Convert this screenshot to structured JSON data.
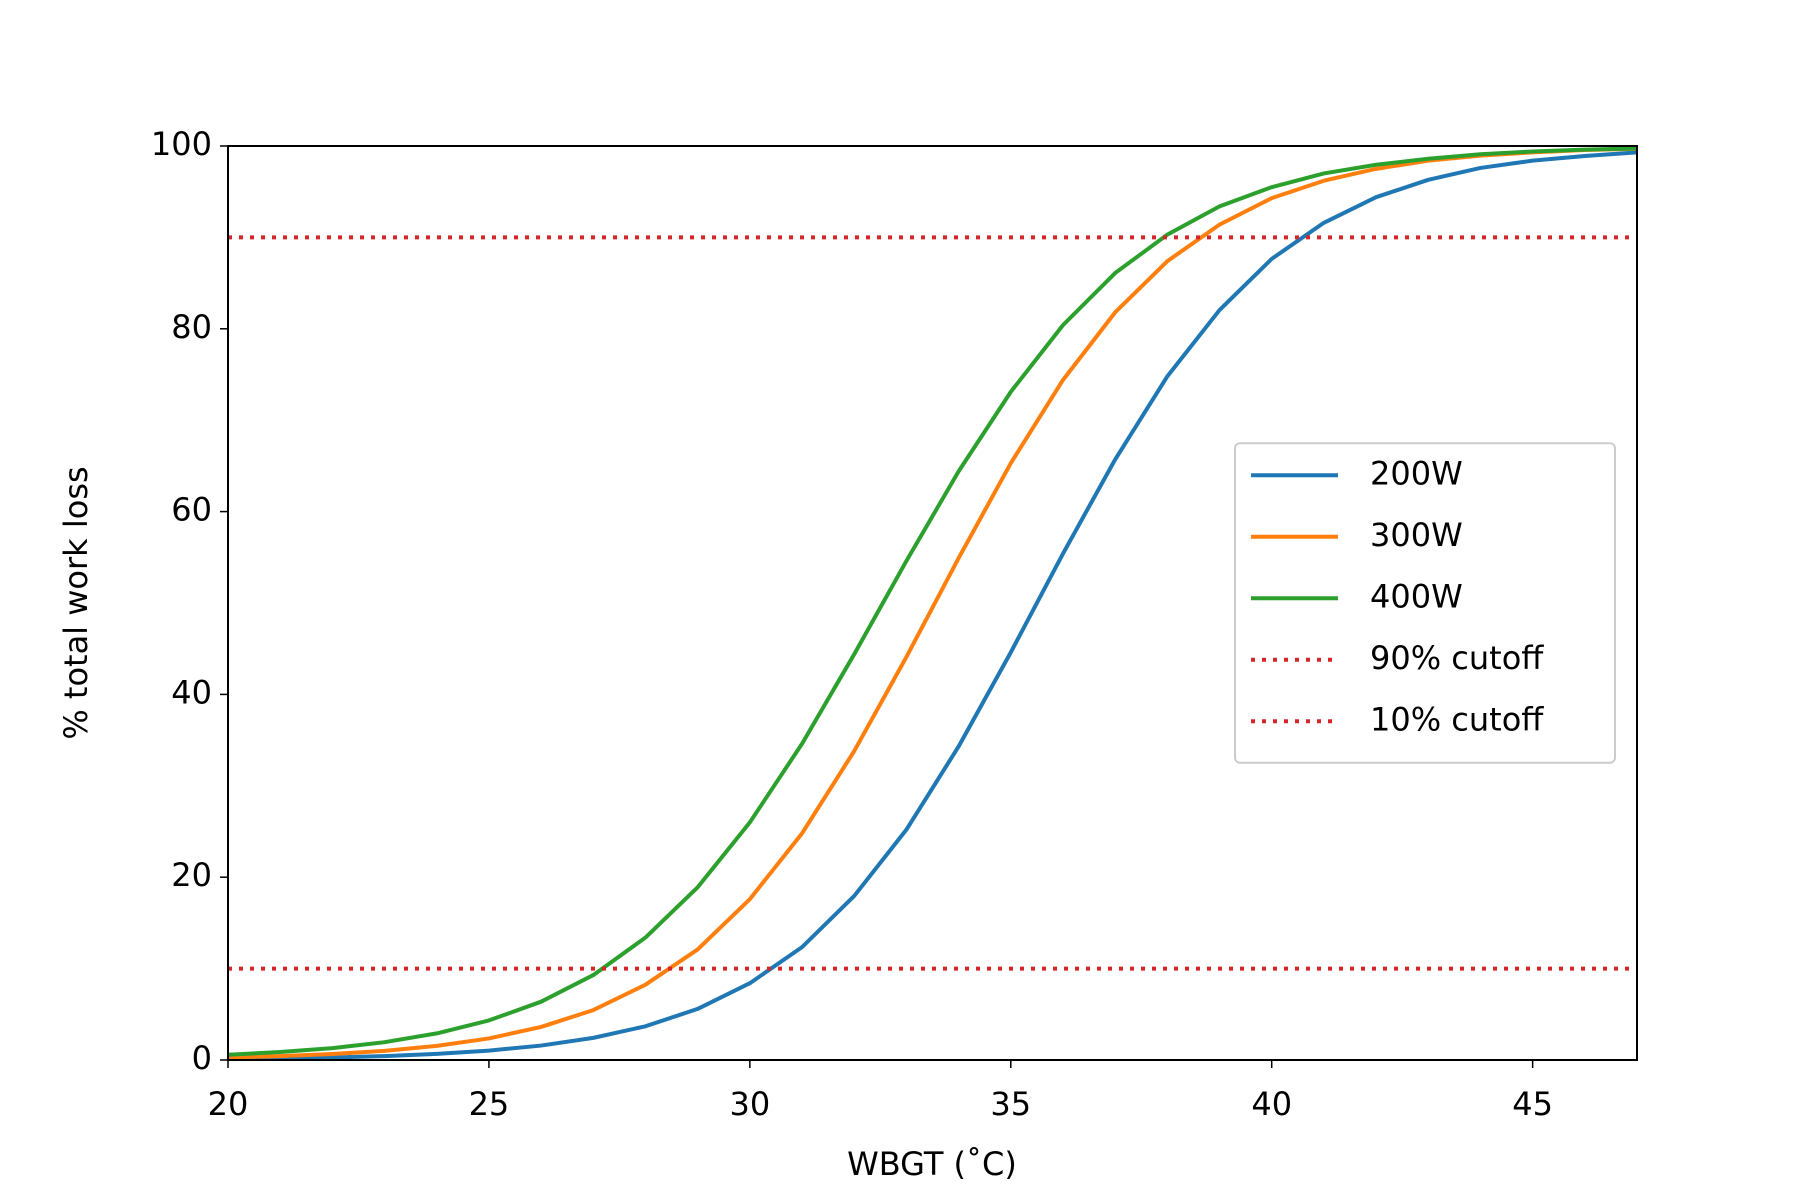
{
  "chart_data": {
    "type": "line",
    "xlabel": "WBGT (˚C)",
    "ylabel": "% total work loss",
    "x": [
      20,
      21,
      22,
      23,
      24,
      25,
      26,
      27,
      28,
      29,
      30,
      31,
      32,
      33,
      34,
      35,
      36,
      37,
      38,
      39,
      40,
      41,
      42,
      43,
      44,
      45,
      46,
      47
    ],
    "series": [
      {
        "name": "200W",
        "color": "#1f77b4",
        "values": [
          0.12,
          0.18,
          0.28,
          0.43,
          0.67,
          1.03,
          1.58,
          2.42,
          3.69,
          5.59,
          8.4,
          12.35,
          17.95,
          25.2,
          34.3,
          44.6,
          55.4,
          65.7,
          74.8,
          82.05,
          87.65,
          91.6,
          94.4,
          96.3,
          97.6,
          98.4,
          98.9,
          99.3
        ]
      },
      {
        "name": "300W",
        "color": "#ff7f0e",
        "values": [
          0.28,
          0.42,
          0.65,
          1.0,
          1.55,
          2.36,
          3.62,
          5.46,
          8.24,
          12.1,
          17.6,
          24.8,
          33.8,
          44.1,
          54.9,
          65.3,
          74.4,
          81.8,
          87.4,
          91.4,
          94.3,
          96.2,
          97.5,
          98.4,
          98.95,
          99.3,
          99.56,
          99.7
        ]
      },
      {
        "name": "400W",
        "color": "#2ca02c",
        "values": [
          0.58,
          0.87,
          1.3,
          1.95,
          2.91,
          4.33,
          6.38,
          9.29,
          13.4,
          18.9,
          26.0,
          34.6,
          44.4,
          54.6,
          64.4,
          73.1,
          80.4,
          86.1,
          90.3,
          93.4,
          95.5,
          97.0,
          97.95,
          98.6,
          99.1,
          99.4,
          99.6,
          99.73
        ]
      }
    ],
    "hlines": [
      {
        "name": "90% cutoff",
        "color": "#d62728",
        "value": 90,
        "linestyle": "dotted"
      },
      {
        "name": "10% cutoff",
        "color": "#d62728",
        "value": 10,
        "linestyle": "dotted"
      }
    ],
    "xlim": [
      20,
      47
    ],
    "xticks": [
      20,
      25,
      30,
      35,
      40,
      45
    ],
    "ylim": [
      0,
      100
    ],
    "yticks": [
      0,
      20,
      40,
      60,
      80,
      100
    ],
    "grid": false,
    "legend": "right"
  }
}
